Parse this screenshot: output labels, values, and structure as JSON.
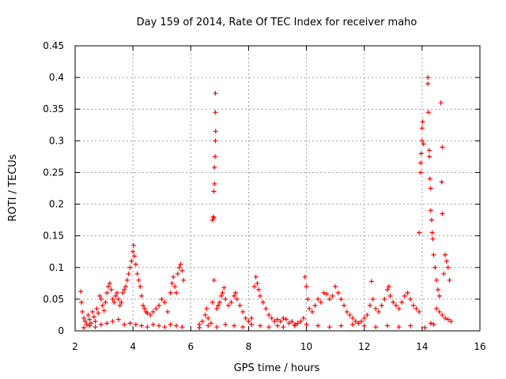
{
  "chart_data": {
    "type": "scatter",
    "title": "Day 159 of 2014, Rate Of TEC Index for receiver maho",
    "xlabel": "GPS time / hours",
    "ylabel": "ROTI / TECUs",
    "xlim": [
      2,
      16
    ],
    "ylim": [
      0,
      0.45
    ],
    "xticks": [
      2,
      4,
      6,
      8,
      10,
      12,
      14,
      16
    ],
    "xtick_labels": [
      "2",
      "4",
      "6",
      "8",
      "10",
      "12",
      "14",
      "16"
    ],
    "yticks": [
      0,
      0.05,
      0.1,
      0.15,
      0.2,
      0.25,
      0.3,
      0.35,
      0.4,
      0.45
    ],
    "ytick_labels": [
      "0",
      "0.05",
      "0.1",
      "0.15",
      "0.2",
      "0.25",
      "0.3",
      "0.35",
      "0.4",
      "0.45"
    ],
    "grid": true,
    "marker": "+",
    "color": "#ff0000",
    "series": [
      {
        "name": "ROTI",
        "points": [
          [
            2.2,
            0.062
          ],
          [
            2.22,
            0.045
          ],
          [
            2.25,
            0.03
          ],
          [
            2.3,
            0.02
          ],
          [
            2.35,
            0.015
          ],
          [
            2.4,
            0.01
          ],
          [
            2.45,
            0.025
          ],
          [
            2.5,
            0.018
          ],
          [
            2.55,
            0.012
          ],
          [
            2.6,
            0.03
          ],
          [
            2.65,
            0.022
          ],
          [
            2.7,
            0.015
          ],
          [
            2.75,
            0.035
          ],
          [
            2.8,
            0.028
          ],
          [
            2.85,
            0.055
          ],
          [
            2.9,
            0.05
          ],
          [
            2.95,
            0.04
          ],
          [
            3.0,
            0.032
          ],
          [
            3.05,
            0.045
          ],
          [
            3.1,
            0.06
          ],
          [
            3.15,
            0.07
          ],
          [
            3.2,
            0.075
          ],
          [
            3.25,
            0.065
          ],
          [
            3.3,
            0.05
          ],
          [
            3.35,
            0.045
          ],
          [
            3.4,
            0.055
          ],
          [
            3.45,
            0.06
          ],
          [
            3.5,
            0.05
          ],
          [
            3.55,
            0.04
          ],
          [
            3.6,
            0.045
          ],
          [
            3.65,
            0.06
          ],
          [
            3.7,
            0.065
          ],
          [
            3.75,
            0.07
          ],
          [
            3.8,
            0.08
          ],
          [
            3.85,
            0.09
          ],
          [
            3.9,
            0.1
          ],
          [
            3.95,
            0.11
          ],
          [
            4.0,
            0.125
          ],
          [
            4.02,
            0.135
          ],
          [
            4.05,
            0.118
          ],
          [
            4.1,
            0.105
          ],
          [
            4.15,
            0.09
          ],
          [
            4.2,
            0.08
          ],
          [
            4.25,
            0.07
          ],
          [
            4.3,
            0.055
          ],
          [
            4.35,
            0.04
          ],
          [
            4.4,
            0.035
          ],
          [
            4.45,
            0.03
          ],
          [
            4.5,
            0.028
          ],
          [
            4.6,
            0.025
          ],
          [
            4.7,
            0.03
          ],
          [
            4.8,
            0.035
          ],
          [
            4.9,
            0.04
          ],
          [
            5.0,
            0.05
          ],
          [
            5.1,
            0.045
          ],
          [
            5.2,
            0.03
          ],
          [
            5.3,
            0.06
          ],
          [
            5.35,
            0.075
          ],
          [
            5.4,
            0.085
          ],
          [
            5.45,
            0.07
          ],
          [
            5.5,
            0.06
          ],
          [
            5.55,
            0.09
          ],
          [
            5.6,
            0.1
          ],
          [
            5.65,
            0.105
          ],
          [
            5.7,
            0.095
          ],
          [
            5.75,
            0.08
          ],
          [
            2.3,
            0.005
          ],
          [
            2.5,
            0.008
          ],
          [
            2.7,
            0.006
          ],
          [
            2.9,
            0.01
          ],
          [
            3.1,
            0.012
          ],
          [
            3.3,
            0.015
          ],
          [
            3.5,
            0.018
          ],
          [
            3.7,
            0.01
          ],
          [
            3.9,
            0.012
          ],
          [
            4.1,
            0.01
          ],
          [
            4.3,
            0.008
          ],
          [
            4.5,
            0.006
          ],
          [
            4.7,
            0.01
          ],
          [
            4.9,
            0.008
          ],
          [
            5.1,
            0.006
          ],
          [
            5.3,
            0.01
          ],
          [
            5.5,
            0.008
          ],
          [
            5.7,
            0.006
          ],
          [
            6.3,
            0.01
          ],
          [
            6.4,
            0.015
          ],
          [
            6.5,
            0.025
          ],
          [
            6.55,
            0.035
          ],
          [
            6.6,
            0.02
          ],
          [
            6.7,
            0.012
          ],
          [
            6.75,
            0.045
          ],
          [
            6.8,
            0.08
          ],
          [
            6.75,
            0.175
          ],
          [
            6.78,
            0.18
          ],
          [
            6.8,
            0.178
          ],
          [
            6.8,
            0.22
          ],
          [
            6.82,
            0.232
          ],
          [
            6.82,
            0.258
          ],
          [
            6.84,
            0.275
          ],
          [
            6.85,
            0.3
          ],
          [
            6.86,
            0.315
          ],
          [
            6.85,
            0.345
          ],
          [
            6.85,
            0.375
          ],
          [
            6.9,
            0.035
          ],
          [
            6.95,
            0.04
          ],
          [
            7.0,
            0.045
          ],
          [
            7.05,
            0.055
          ],
          [
            7.1,
            0.06
          ],
          [
            7.15,
            0.068
          ],
          [
            7.2,
            0.05
          ],
          [
            7.3,
            0.04
          ],
          [
            7.4,
            0.045
          ],
          [
            7.5,
            0.055
          ],
          [
            7.55,
            0.06
          ],
          [
            7.6,
            0.05
          ],
          [
            7.7,
            0.04
          ],
          [
            7.8,
            0.03
          ],
          [
            7.9,
            0.02
          ],
          [
            8.0,
            0.015
          ],
          [
            8.1,
            0.02
          ],
          [
            8.2,
            0.07
          ],
          [
            8.25,
            0.085
          ],
          [
            8.3,
            0.075
          ],
          [
            8.35,
            0.065
          ],
          [
            8.4,
            0.055
          ],
          [
            8.5,
            0.045
          ],
          [
            8.6,
            0.035
          ],
          [
            8.7,
            0.025
          ],
          [
            8.8,
            0.02
          ],
          [
            8.9,
            0.015
          ],
          [
            9.0,
            0.018
          ],
          [
            6.3,
            0.005
          ],
          [
            6.6,
            0.008
          ],
          [
            6.9,
            0.006
          ],
          [
            7.2,
            0.01
          ],
          [
            7.5,
            0.008
          ],
          [
            7.8,
            0.006
          ],
          [
            8.1,
            0.01
          ],
          [
            8.4,
            0.008
          ],
          [
            8.7,
            0.006
          ],
          [
            9.0,
            0.008
          ],
          [
            9.1,
            0.015
          ],
          [
            9.2,
            0.02
          ],
          [
            9.3,
            0.018
          ],
          [
            9.4,
            0.012
          ],
          [
            9.5,
            0.015
          ],
          [
            9.6,
            0.01
          ],
          [
            9.7,
            0.012
          ],
          [
            9.8,
            0.015
          ],
          [
            9.9,
            0.02
          ],
          [
            9.95,
            0.085
          ],
          [
            10.0,
            0.07
          ],
          [
            10.05,
            0.05
          ],
          [
            10.1,
            0.035
          ],
          [
            10.2,
            0.03
          ],
          [
            10.3,
            0.04
          ],
          [
            10.4,
            0.05
          ],
          [
            10.5,
            0.045
          ],
          [
            10.6,
            0.06
          ],
          [
            10.7,
            0.058
          ],
          [
            10.8,
            0.05
          ],
          [
            10.9,
            0.055
          ],
          [
            11.0,
            0.07
          ],
          [
            11.1,
            0.06
          ],
          [
            11.2,
            0.05
          ],
          [
            11.3,
            0.04
          ],
          [
            11.4,
            0.03
          ],
          [
            11.5,
            0.025
          ],
          [
            11.6,
            0.02
          ],
          [
            11.7,
            0.015
          ],
          [
            11.8,
            0.012
          ],
          [
            11.9,
            0.015
          ],
          [
            12.0,
            0.02
          ],
          [
            12.1,
            0.025
          ],
          [
            12.2,
            0.04
          ],
          [
            12.25,
            0.078
          ],
          [
            12.3,
            0.05
          ],
          [
            12.4,
            0.035
          ],
          [
            12.5,
            0.03
          ],
          [
            12.6,
            0.04
          ],
          [
            12.7,
            0.05
          ],
          [
            12.8,
            0.065
          ],
          [
            12.85,
            0.07
          ],
          [
            12.9,
            0.055
          ],
          [
            13.0,
            0.045
          ],
          [
            13.1,
            0.04
          ],
          [
            13.2,
            0.035
          ],
          [
            13.3,
            0.045
          ],
          [
            13.4,
            0.055
          ],
          [
            13.5,
            0.06
          ],
          [
            13.6,
            0.05
          ],
          [
            13.7,
            0.04
          ],
          [
            13.8,
            0.035
          ],
          [
            13.9,
            0.03
          ],
          [
            9.2,
            0.006
          ],
          [
            9.6,
            0.008
          ],
          [
            10.0,
            0.01
          ],
          [
            10.4,
            0.008
          ],
          [
            10.8,
            0.006
          ],
          [
            11.2,
            0.008
          ],
          [
            11.6,
            0.01
          ],
          [
            12.0,
            0.008
          ],
          [
            12.4,
            0.006
          ],
          [
            12.8,
            0.008
          ],
          [
            13.2,
            0.006
          ],
          [
            13.6,
            0.008
          ],
          [
            13.9,
            0.155
          ],
          [
            13.95,
            0.25
          ],
          [
            13.95,
            0.265
          ],
          [
            13.97,
            0.28
          ],
          [
            14.0,
            0.3
          ],
          [
            14.0,
            0.32
          ],
          [
            14.02,
            0.33
          ],
          [
            14.05,
            0.295
          ],
          [
            14.1,
            0.005
          ],
          [
            14.2,
            0.4
          ],
          [
            14.2,
            0.39
          ],
          [
            14.22,
            0.345
          ],
          [
            14.25,
            0.285
          ],
          [
            14.25,
            0.275
          ],
          [
            14.27,
            0.24
          ],
          [
            14.3,
            0.225
          ],
          [
            14.3,
            0.19
          ],
          [
            14.33,
            0.175
          ],
          [
            14.35,
            0.155
          ],
          [
            14.37,
            0.145
          ],
          [
            14.4,
            0.12
          ],
          [
            14.45,
            0.1
          ],
          [
            14.5,
            0.08
          ],
          [
            14.55,
            0.065
          ],
          [
            14.6,
            0.055
          ],
          [
            14.65,
            0.36
          ],
          [
            14.7,
            0.29
          ],
          [
            14.68,
            0.235
          ],
          [
            14.7,
            0.185
          ],
          [
            14.75,
            0.09
          ],
          [
            14.8,
            0.12
          ],
          [
            14.85,
            0.11
          ],
          [
            14.9,
            0.1
          ],
          [
            14.95,
            0.08
          ],
          [
            14.5,
            0.035
          ],
          [
            14.6,
            0.03
          ],
          [
            14.7,
            0.025
          ],
          [
            14.8,
            0.02
          ],
          [
            14.9,
            0.018
          ],
          [
            15.0,
            0.015
          ],
          [
            14.4,
            0.01
          ],
          [
            14.3,
            0.012
          ]
        ]
      }
    ]
  }
}
